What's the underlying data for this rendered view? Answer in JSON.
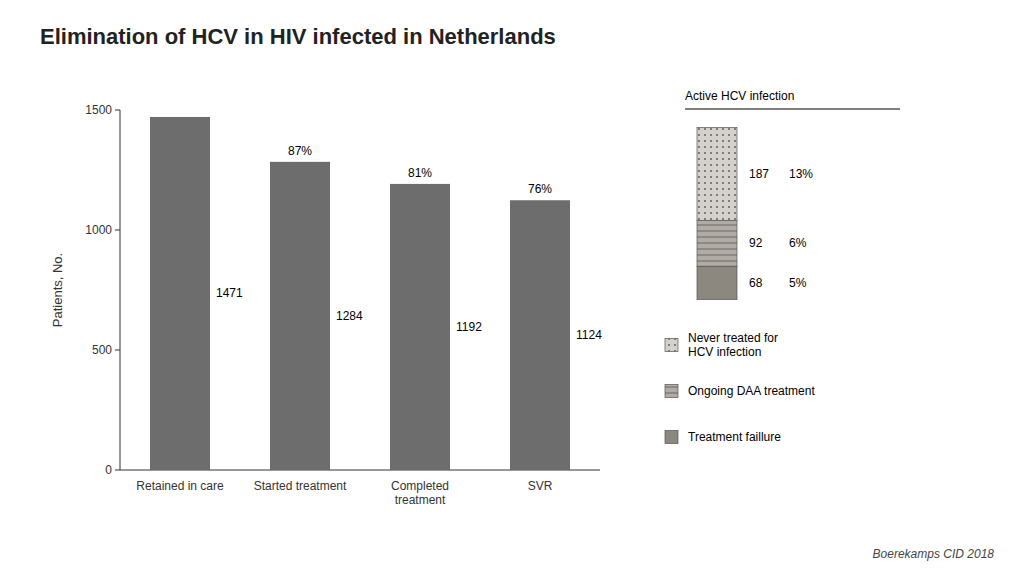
{
  "chart_data": [
    {
      "type": "bar",
      "title": "Elimination of HCV in HIV infected in Netherlands",
      "categories": [
        "Retained in care",
        "Started treatment",
        "Completed\ntreatment",
        "SVR"
      ],
      "values": [
        1471,
        1284,
        1192,
        1124
      ],
      "annotations": [
        null,
        "87%",
        "81%",
        "76%"
      ],
      "color": "#6d6d6d",
      "ylabel": "Patients, No.",
      "ylim": [
        0,
        1500
      ],
      "yticks": [
        0,
        500,
        1000,
        1500
      ],
      "grid": false,
      "data_labels": true,
      "footnote": "Boerekamps CID 2018"
    },
    {
      "type": "bar",
      "title": "Active HCV infection",
      "stacked": true,
      "categories": [
        null
      ],
      "series": [
        {
          "name": "Never treated for\nHCV infection",
          "color": "#d4d0cb",
          "values": [
            187
          ],
          "annotations": [
            "13%"
          ]
        },
        {
          "name": "Ongoing DAA treatment",
          "color": "#b0aca5",
          "values": [
            92
          ],
          "annotations": [
            "6%"
          ]
        },
        {
          "name": "Treatment faillure",
          "color": "#8c8880",
          "values": [
            68
          ],
          "annotations": [
            "5%"
          ]
        }
      ],
      "ylim": [
        0,
        352
      ],
      "tick_labels": false,
      "data_labels": true,
      "legend": "right"
    }
  ]
}
